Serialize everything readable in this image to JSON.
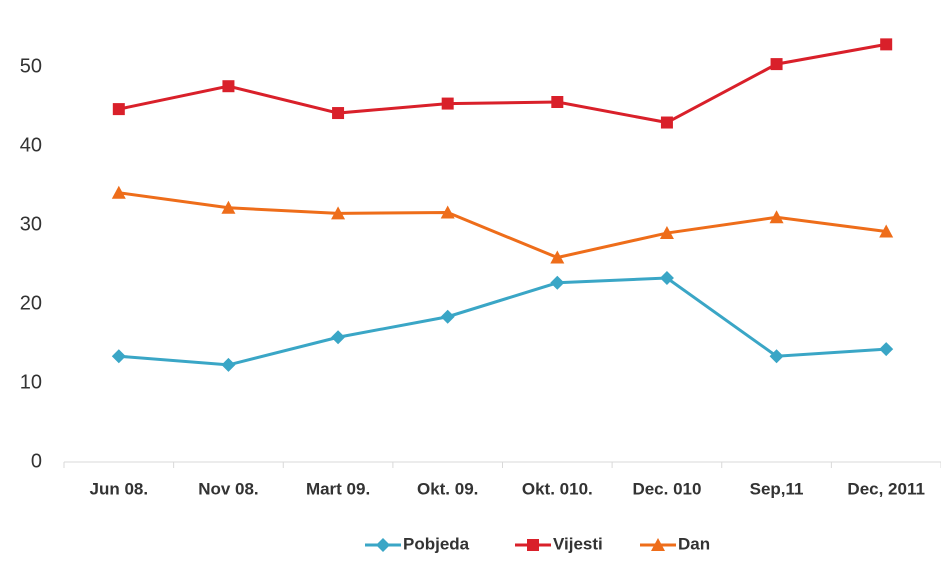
{
  "chart_data": {
    "type": "line",
    "categories": [
      "Jun 08.",
      "Nov 08.",
      "Mart 09.",
      "Okt. 09.",
      "Okt. 010.",
      "Dec. 010",
      "Sep,11",
      "Dec, 2011"
    ],
    "series": [
      {
        "name": "Pobjeda",
        "color": "#3aa6c6",
        "marker": "diamond",
        "values": [
          13.4,
          12.3,
          15.8,
          18.4,
          22.7,
          23.3,
          13.4,
          14.3
        ]
      },
      {
        "name": "Vijesti",
        "color": "#d9202a",
        "marker": "square",
        "values": [
          44.7,
          47.6,
          44.2,
          45.4,
          45.6,
          43.0,
          50.4,
          52.9
        ]
      },
      {
        "name": "Dan",
        "color": "#ee6d1a",
        "marker": "triangle",
        "values": [
          34.1,
          32.2,
          31.5,
          31.6,
          25.9,
          29.0,
          31.0,
          29.2
        ]
      }
    ],
    "ylim": [
      0,
      57
    ],
    "yticks": [
      0,
      10,
      20,
      30,
      40,
      50
    ],
    "grid": false,
    "legend": "bottom"
  }
}
